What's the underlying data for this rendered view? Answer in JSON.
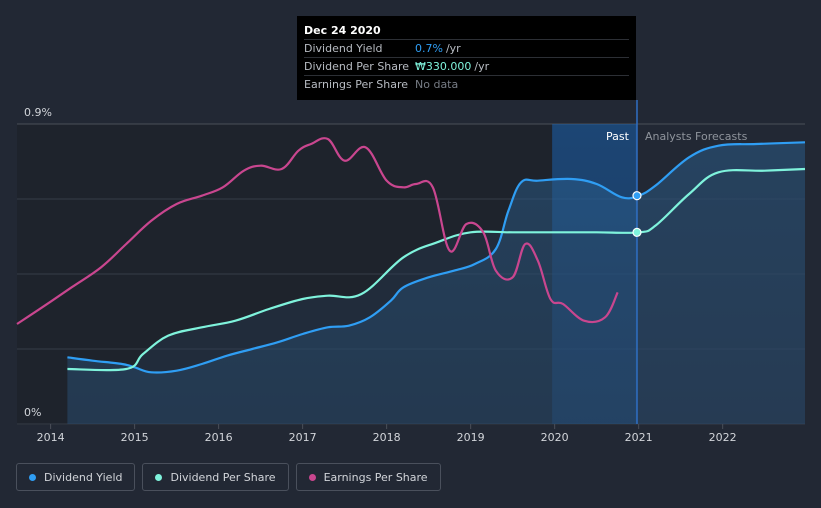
{
  "chart_data": {
    "type": "line",
    "title": "",
    "xlabel": "",
    "ylabel": "",
    "x_ticks": [
      "2014",
      "2015",
      "2016",
      "2017",
      "2018",
      "2019",
      "2020",
      "2021",
      "2022"
    ],
    "x_range": [
      2013.6,
      2022.98
    ],
    "y_ticks": [
      "0.9%",
      "0%"
    ],
    "y_range": [
      0,
      0.9
    ],
    "past_label": "Past",
    "forecast_label": "Analysts Forecasts",
    "forecast_start": 2020.98,
    "highlight_range": [
      2019.97,
      2020.98
    ],
    "series": [
      {
        "name": "Dividend Yield",
        "color": "#2f9ef4",
        "x": [
          2014.2,
          2014.5,
          2014.85,
          2015.0,
          2015.2,
          2015.5,
          2015.8,
          2016.1,
          2016.4,
          2016.7,
          2017.0,
          2017.3,
          2017.55,
          2017.8,
          2018.05,
          2018.2,
          2018.5,
          2018.8,
          2019.05,
          2019.3,
          2019.45,
          2019.6,
          2019.8,
          2020.2,
          2020.5,
          2020.8,
          2021.0,
          2021.2,
          2021.6,
          2021.95,
          2022.4,
          2022.98
        ],
        "y": [
          0.2,
          0.19,
          0.18,
          0.17,
          0.155,
          0.16,
          0.18,
          0.205,
          0.225,
          0.245,
          0.27,
          0.29,
          0.295,
          0.32,
          0.37,
          0.41,
          0.44,
          0.46,
          0.48,
          0.525,
          0.64,
          0.725,
          0.73,
          0.735,
          0.72,
          0.68,
          0.685,
          0.715,
          0.8,
          0.835,
          0.84,
          0.845
        ],
        "fill": true
      },
      {
        "name": "Dividend Per Share",
        "color": "#7ff3dc",
        "x": [
          2014.2,
          2014.9,
          2015.1,
          2015.4,
          2015.8,
          2016.2,
          2016.6,
          2017.0,
          2017.3,
          2017.7,
          2018.2,
          2018.6,
          2019.0,
          2019.5,
          2020.0,
          2020.5,
          2021.0,
          2021.2,
          2021.6,
          2021.95,
          2022.5,
          2022.98
        ],
        "y": [
          0.165,
          0.165,
          0.21,
          0.265,
          0.29,
          0.31,
          0.345,
          0.375,
          0.385,
          0.39,
          0.5,
          0.545,
          0.575,
          0.575,
          0.575,
          0.575,
          0.575,
          0.595,
          0.69,
          0.755,
          0.76,
          0.765
        ],
        "fill": true
      },
      {
        "name": "Earnings Per Share",
        "color": "#c9468f",
        "x": [
          2013.6,
          2013.9,
          2014.25,
          2014.6,
          2014.9,
          2015.2,
          2015.5,
          2015.8,
          2016.05,
          2016.3,
          2016.5,
          2016.75,
          2016.95,
          2017.1,
          2017.3,
          2017.5,
          2017.75,
          2018.0,
          2018.2,
          2018.35,
          2018.55,
          2018.75,
          2018.95,
          2019.15,
          2019.3,
          2019.5,
          2019.65,
          2019.8,
          2019.95,
          2020.1,
          2020.35,
          2020.6,
          2020.75
        ],
        "y": [
          0.3,
          0.35,
          0.41,
          0.47,
          0.54,
          0.61,
          0.66,
          0.685,
          0.71,
          0.76,
          0.775,
          0.765,
          0.82,
          0.84,
          0.855,
          0.79,
          0.83,
          0.73,
          0.71,
          0.72,
          0.71,
          0.52,
          0.6,
          0.575,
          0.46,
          0.44,
          0.54,
          0.49,
          0.375,
          0.36,
          0.31,
          0.32,
          0.395
        ],
        "fill": false
      }
    ],
    "markers": [
      {
        "series": "Dividend Yield",
        "x": 2020.98,
        "y": 0.685
      },
      {
        "series": "Dividend Per Share",
        "x": 2020.98,
        "y": 0.575
      }
    ]
  },
  "tooltip": {
    "date": "Dec 24 2020",
    "rows": [
      {
        "label": "Dividend Yield",
        "value": "0.7%",
        "unit": "/yr"
      },
      {
        "label": "Dividend Per Share",
        "value": "₩330.000",
        "unit": "/yr"
      },
      {
        "label": "Earnings Per Share",
        "value": "No data",
        "unit": ""
      }
    ]
  },
  "legend": [
    {
      "label": "Dividend Yield",
      "color": "#2f9ef4"
    },
    {
      "label": "Dividend Per Share",
      "color": "#7ff3dc"
    },
    {
      "label": "Earnings Per Share",
      "color": "#c9468f"
    }
  ]
}
